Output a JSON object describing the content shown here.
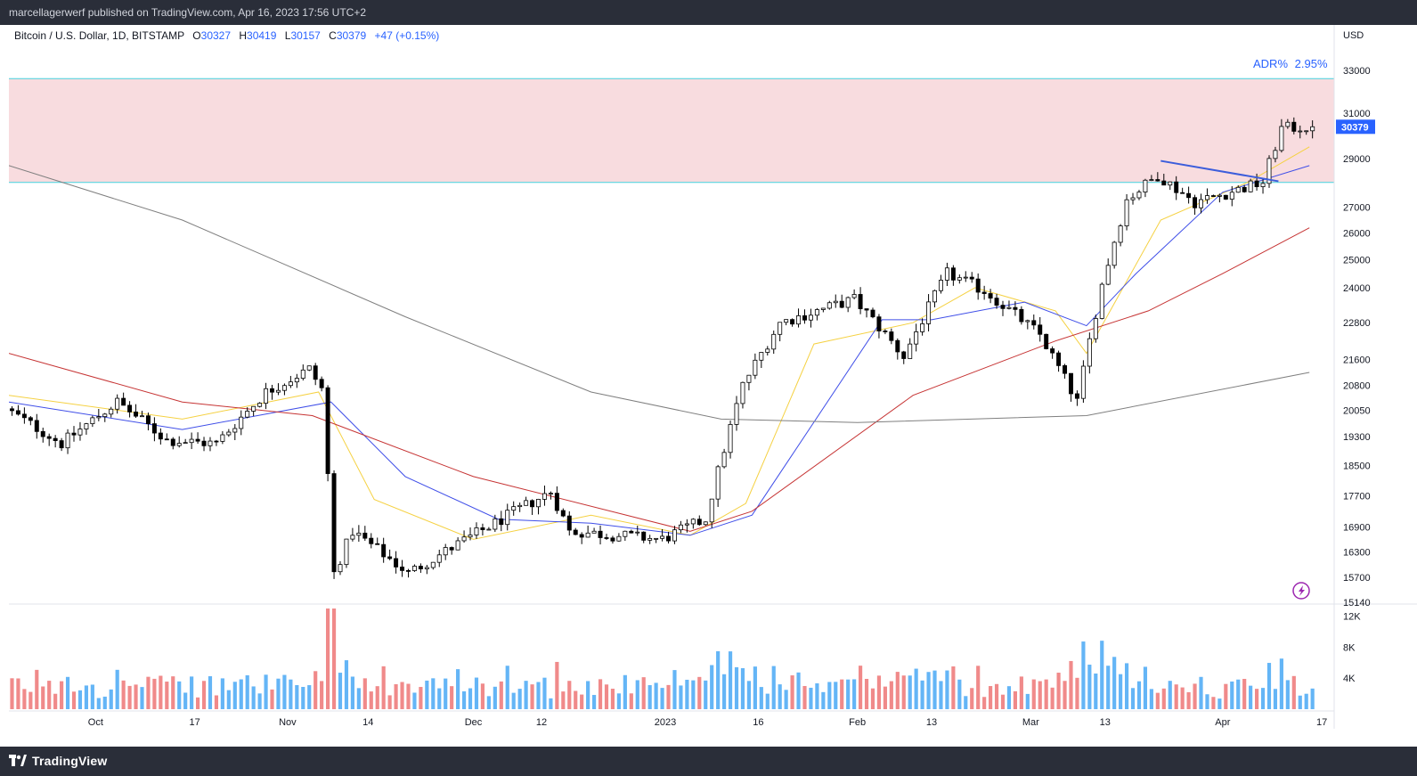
{
  "header": {
    "publisher_line": "marcellagerwerf published on TradingView.com, Apr 16, 2023 17:56 UTC+2"
  },
  "legend": {
    "symbol": "Bitcoin / U.S. Dollar, 1D, BITSTAMP",
    "o_label": "O",
    "o_value": "30327",
    "h_label": "H",
    "h_value": "30419",
    "l_label": "L",
    "l_value": "30157",
    "c_label": "C",
    "c_value": "30379",
    "change": "+47 (+0.15%)"
  },
  "adr": {
    "label": "ADR%",
    "value": "2.95%"
  },
  "footer": {
    "logo_text": "TradingView"
  },
  "colors": {
    "up": "#ffffff",
    "down": "#000000",
    "outline": "#000000",
    "vol_up": "#64b5f6",
    "vol_down": "#f08a8a",
    "ma_fast": "#f5d142",
    "ma_mid": "#3f4ee8",
    "ma_slow": "#c63434",
    "ma_long": "#7f7f7f",
    "zone_fill": "#f8dcdf",
    "zone_border": "#45d3e0",
    "trendline": "#3c5ddb",
    "price_tag": "#2962ff",
    "axis_text": "#131722",
    "header_bg": "#2a2e39"
  },
  "chart_data": {
    "type": "candlestick",
    "title": "Bitcoin / U.S. Dollar, 1D, BITSTAMP",
    "currency": "USD",
    "y_scale": "log",
    "ylim": [
      15140,
      34000
    ],
    "y_ticks": [
      "33000",
      "31000",
      "29000",
      "27000",
      "26000",
      "25000",
      "24000",
      "22800",
      "21600",
      "20800",
      "20050",
      "19300",
      "18500",
      "17700",
      "16900",
      "16300",
      "15700",
      "15140"
    ],
    "last_price": "30379",
    "x_ticks": [
      "Oct",
      "17",
      "Nov",
      "14",
      "Dec",
      "12",
      "2023",
      "16",
      "Feb",
      "13",
      "Mar",
      "13",
      "Apr",
      "17"
    ],
    "x_range": [
      "2022-09-17",
      "2023-04-19"
    ],
    "resistance_zone": [
      28000,
      32600
    ],
    "trendline": [
      {
        "date": "2023-03-22",
        "price": 28900
      },
      {
        "date": "2023-04-10",
        "price": 28050
      }
    ],
    "volume_axis": {
      "ticks": [
        "12K",
        "8K",
        "4K"
      ],
      "max": 13000
    },
    "anchors": [
      {
        "date": "2022-09-17",
        "price": 20100
      },
      {
        "date": "2022-09-26",
        "price": 19100
      },
      {
        "date": "2022-10-05",
        "price": 20300
      },
      {
        "date": "2022-10-13",
        "price": 19200
      },
      {
        "date": "2022-10-21",
        "price": 19100
      },
      {
        "date": "2022-10-29",
        "price": 20600
      },
      {
        "date": "2022-11-05",
        "price": 21300
      },
      {
        "date": "2022-11-07",
        "price": 20700
      },
      {
        "date": "2022-11-09",
        "price": 15800
      },
      {
        "date": "2022-11-12",
        "price": 16800
      },
      {
        "date": "2022-11-21",
        "price": 15800
      },
      {
        "date": "2022-12-05",
        "price": 17000
      },
      {
        "date": "2022-12-14",
        "price": 17800
      },
      {
        "date": "2022-12-17",
        "price": 16800
      },
      {
        "date": "2023-01-01",
        "price": 16600
      },
      {
        "date": "2023-01-08",
        "price": 17100
      },
      {
        "date": "2023-01-14",
        "price": 20800
      },
      {
        "date": "2023-01-20",
        "price": 22800
      },
      {
        "date": "2023-02-01",
        "price": 23600
      },
      {
        "date": "2023-02-09",
        "price": 21700
      },
      {
        "date": "2023-02-16",
        "price": 24500
      },
      {
        "date": "2023-02-22",
        "price": 23900
      },
      {
        "date": "2023-03-03",
        "price": 22400
      },
      {
        "date": "2023-03-09",
        "price": 20300
      },
      {
        "date": "2023-03-13",
        "price": 24100
      },
      {
        "date": "2023-03-17",
        "price": 27300
      },
      {
        "date": "2023-03-22",
        "price": 28300
      },
      {
        "date": "2023-03-28",
        "price": 27200
      },
      {
        "date": "2023-04-08",
        "price": 28000
      },
      {
        "date": "2023-04-11",
        "price": 30300
      },
      {
        "date": "2023-04-15",
        "price": 30379
      }
    ],
    "moving_averages": [
      {
        "color": "#f5d142",
        "points": [
          [
            "2022-09-17",
            20500
          ],
          [
            "2022-10-15",
            19800
          ],
          [
            "2022-11-06",
            20600
          ],
          [
            "2022-11-15",
            17600
          ],
          [
            "2022-12-01",
            16600
          ],
          [
            "2022-12-20",
            17200
          ],
          [
            "2023-01-05",
            16700
          ],
          [
            "2023-01-14",
            17500
          ],
          [
            "2023-01-25",
            22100
          ],
          [
            "2023-02-10",
            22800
          ],
          [
            "2023-02-20",
            24000
          ],
          [
            "2023-03-05",
            23200
          ],
          [
            "2023-03-10",
            21800
          ],
          [
            "2023-03-22",
            26500
          ],
          [
            "2023-04-05",
            28000
          ],
          [
            "2023-04-15",
            29500
          ]
        ]
      },
      {
        "color": "#3f4ee8",
        "points": [
          [
            "2022-09-17",
            20300
          ],
          [
            "2022-10-15",
            19500
          ],
          [
            "2022-11-08",
            20300
          ],
          [
            "2022-11-20",
            18200
          ],
          [
            "2022-12-05",
            17100
          ],
          [
            "2022-12-20",
            17000
          ],
          [
            "2023-01-05",
            16700
          ],
          [
            "2023-01-15",
            17200
          ],
          [
            "2023-02-05",
            22900
          ],
          [
            "2023-02-13",
            22900
          ],
          [
            "2023-02-28",
            23500
          ],
          [
            "2023-03-10",
            22700
          ],
          [
            "2023-03-18",
            24500
          ],
          [
            "2023-04-01",
            27600
          ],
          [
            "2023-04-15",
            28700
          ]
        ]
      },
      {
        "color": "#c63434",
        "points": [
          [
            "2022-09-17",
            21800
          ],
          [
            "2022-10-15",
            20300
          ],
          [
            "2022-11-05",
            19900
          ],
          [
            "2022-12-01",
            18200
          ],
          [
            "2023-01-05",
            16800
          ],
          [
            "2023-01-15",
            17300
          ],
          [
            "2023-02-10",
            20500
          ],
          [
            "2023-03-05",
            22200
          ],
          [
            "2023-03-20",
            23200
          ],
          [
            "2023-04-01",
            24500
          ],
          [
            "2023-04-15",
            26200
          ]
        ]
      },
      {
        "color": "#7f7f7f",
        "points": [
          [
            "2022-09-17",
            28700
          ],
          [
            "2022-10-15",
            26500
          ],
          [
            "2022-11-20",
            23000
          ],
          [
            "2022-12-20",
            20600
          ],
          [
            "2023-01-10",
            19800
          ],
          [
            "2023-02-01",
            19700
          ],
          [
            "2023-03-10",
            19900
          ],
          [
            "2023-04-15",
            21200
          ]
        ]
      }
    ]
  }
}
